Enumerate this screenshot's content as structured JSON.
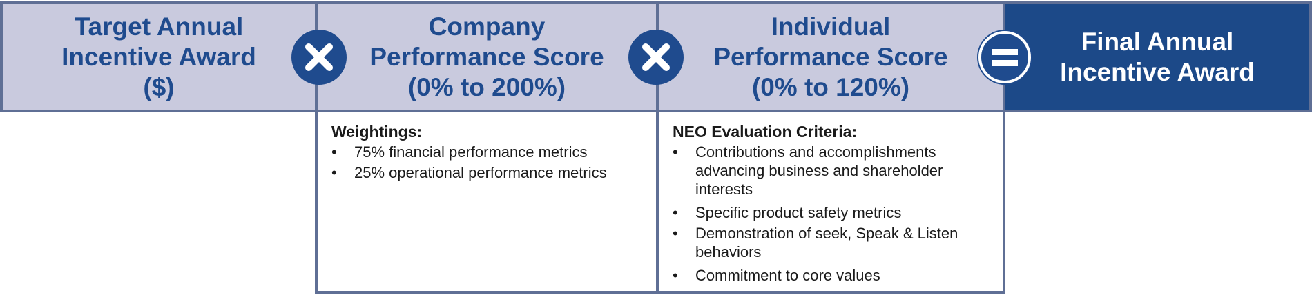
{
  "header": {
    "target_award": "Target Annual\nIncentive Award\n($)",
    "company_score": "Company\nPerformance Score\n(0% to 200%)",
    "individual_score": "Individual\nPerformance Score\n(0% to 120%)",
    "final_award": "Final Annual\nIncentive Award"
  },
  "operators": [
    "multiply-icon",
    "multiply-icon",
    "equals-icon"
  ],
  "company_details": {
    "heading": "Weightings:",
    "items": [
      "75% financial performance metrics",
      "25% operational performance metrics"
    ]
  },
  "individual_details": {
    "heading": "NEO Evaluation Criteria:",
    "items": [
      "Contributions and accomplishments advancing business and shareholder interests",
      "Specific product safety metrics",
      "Demonstration of seek, Speak & Listen behaviors",
      "Commitment to core values"
    ]
  },
  "colors": {
    "header_fill": "#c9cade",
    "header_text": "#1f4b8e",
    "border": "#5f6f95",
    "final_fill": "#1c4988",
    "final_text": "#ffffff"
  }
}
